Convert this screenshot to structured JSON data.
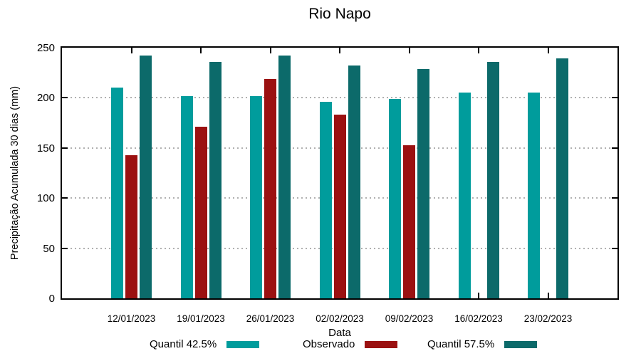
{
  "chart_data": {
    "type": "bar",
    "title": "Rio Napo",
    "xlabel": "Data",
    "ylabel": "Precipitação Acumulada 30 dias (mm)",
    "ylim": [
      0,
      250
    ],
    "yticks": [
      0,
      50,
      100,
      150,
      200,
      250
    ],
    "grid": true,
    "legend_position": "bottom",
    "categories": [
      "12/01/2023",
      "19/01/2023",
      "26/01/2023",
      "02/02/2023",
      "09/02/2023",
      "16/02/2023",
      "23/02/2023"
    ],
    "series": [
      {
        "name": "Quantil 42.5%",
        "color": "#009C9C",
        "values": [
          210,
          202,
          202,
          196,
          199,
          205,
          205
        ]
      },
      {
        "name": "Observado",
        "color": "#9B1111",
        "values": [
          143,
          171,
          219,
          183,
          153,
          null,
          null
        ]
      },
      {
        "name": "Quantil 57.5%",
        "color": "#0C6A6A",
        "values": [
          242,
          236,
          242,
          232,
          229,
          236,
          239
        ]
      }
    ]
  }
}
